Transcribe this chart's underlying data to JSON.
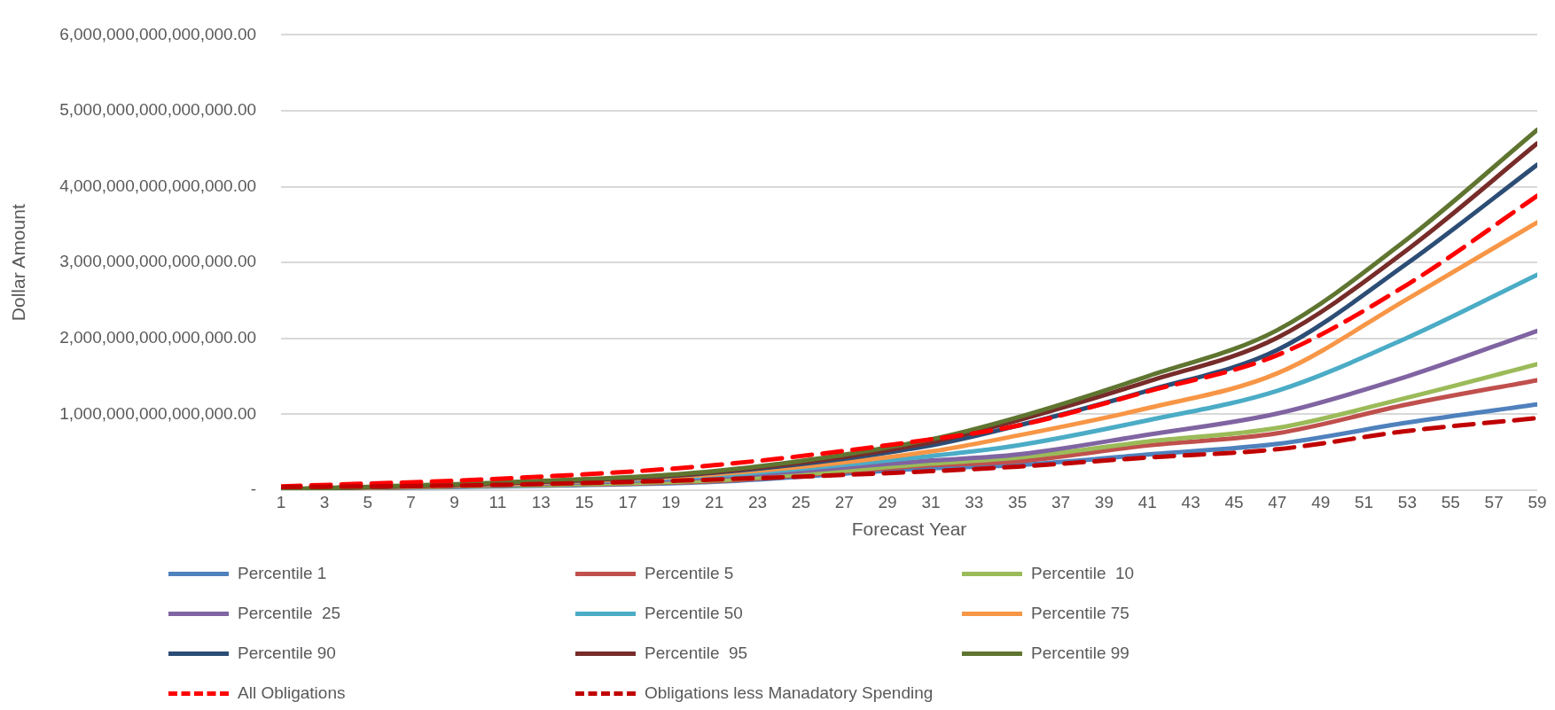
{
  "chart_data": {
    "type": "line",
    "xlabel": "Forecast Year",
    "ylabel": "Dollar Amount",
    "grid": "y",
    "legend": "bottom",
    "marker": "none",
    "xlim": [
      1,
      59
    ],
    "xticks": [
      1,
      3,
      5,
      7,
      9,
      11,
      13,
      15,
      17,
      19,
      21,
      23,
      25,
      27,
      29,
      31,
      33,
      35,
      37,
      39,
      41,
      43,
      45,
      47,
      49,
      51,
      53,
      55,
      57,
      59
    ],
    "ylim": [
      0,
      6000000000000000
    ],
    "yticks": [
      {
        "value": 0,
        "label": "-"
      },
      {
        "value": 1000000000000000,
        "label": "1,000,000,000,000,000.00"
      },
      {
        "value": 2000000000000000,
        "label": "2,000,000,000,000,000.00"
      },
      {
        "value": 3000000000000000,
        "label": "3,000,000,000,000,000.00"
      },
      {
        "value": 4000000000000000,
        "label": "4,000,000,000,000,000.00"
      },
      {
        "value": 5000000000000000,
        "label": "5,000,000,000,000,000.00"
      },
      {
        "value": 6000000000000000,
        "label": "6,000,000,000,000,000.00"
      }
    ],
    "x": [
      1,
      11,
      21,
      31,
      35,
      41,
      47,
      53,
      59
    ],
    "series": [
      {
        "name": "Percentile 1",
        "color": "#4f81bd",
        "line_style": "solid",
        "values": [
          10000000000000,
          50000000000000,
          110000000000000,
          290000000000000,
          330000000000000,
          470000000000000,
          610000000000000,
          890000000000000,
          1130000000000000
        ]
      },
      {
        "name": "Percentile 5",
        "color": "#c0504d",
        "line_style": "solid",
        "values": [
          10000000000000,
          60000000000000,
          120000000000000,
          330000000000000,
          380000000000000,
          590000000000000,
          750000000000000,
          1130000000000000,
          1450000000000000
        ]
      },
      {
        "name": "Percentile  10",
        "color": "#9bbb59",
        "line_style": "solid",
        "values": [
          10000000000000,
          60000000000000,
          130000000000000,
          350000000000000,
          430000000000000,
          640000000000000,
          820000000000000,
          1220000000000000,
          1660000000000000
        ]
      },
      {
        "name": "Percentile  25",
        "color": "#8064a2",
        "line_style": "solid",
        "values": [
          10000000000000,
          70000000000000,
          170000000000000,
          390000000000000,
          470000000000000,
          730000000000000,
          1010000000000000,
          1500000000000000,
          2100000000000000
        ]
      },
      {
        "name": "Percentile 50",
        "color": "#4bacc6",
        "line_style": "solid",
        "values": [
          10000000000000,
          80000000000000,
          190000000000000,
          450000000000000,
          590000000000000,
          920000000000000,
          1310000000000000,
          2010000000000000,
          2840000000000000
        ]
      },
      {
        "name": "Percentile 75",
        "color": "#f79646",
        "line_style": "solid",
        "values": [
          10000000000000,
          80000000000000,
          210000000000000,
          510000000000000,
          720000000000000,
          1080000000000000,
          1540000000000000,
          2520000000000000,
          3530000000000000
        ]
      },
      {
        "name": "Percentile 90",
        "color": "#2c4d75",
        "line_style": "solid",
        "values": [
          10000000000000,
          90000000000000,
          230000000000000,
          590000000000000,
          850000000000000,
          1310000000000000,
          1850000000000000,
          2990000000000000,
          4290000000000000
        ]
      },
      {
        "name": "Percentile  95",
        "color": "#772c2a",
        "line_style": "solid",
        "values": [
          10000000000000,
          90000000000000,
          240000000000000,
          630000000000000,
          920000000000000,
          1430000000000000,
          2010000000000000,
          3170000000000000,
          4570000000000000
        ]
      },
      {
        "name": "Percentile 99",
        "color": "#5f7530",
        "line_style": "solid",
        "values": [
          10000000000000,
          100000000000000,
          250000000000000,
          670000000000000,
          960000000000000,
          1500000000000000,
          2110000000000000,
          3310000000000000,
          4750000000000000
        ]
      },
      {
        "name": "All Obligations",
        "color": "#ff0000",
        "line_style": "dashed",
        "values": [
          50000000000000,
          150000000000000,
          330000000000000,
          670000000000000,
          850000000000000,
          1300000000000000,
          1780000000000000,
          2710000000000000,
          3880000000000000
        ]
      },
      {
        "name": "Obligations less Manadatory Spending",
        "color": "#c00000",
        "line_style": "dashed",
        "values": [
          40000000000000,
          70000000000000,
          140000000000000,
          250000000000000,
          310000000000000,
          430000000000000,
          540000000000000,
          780000000000000,
          950000000000000
        ]
      }
    ]
  }
}
